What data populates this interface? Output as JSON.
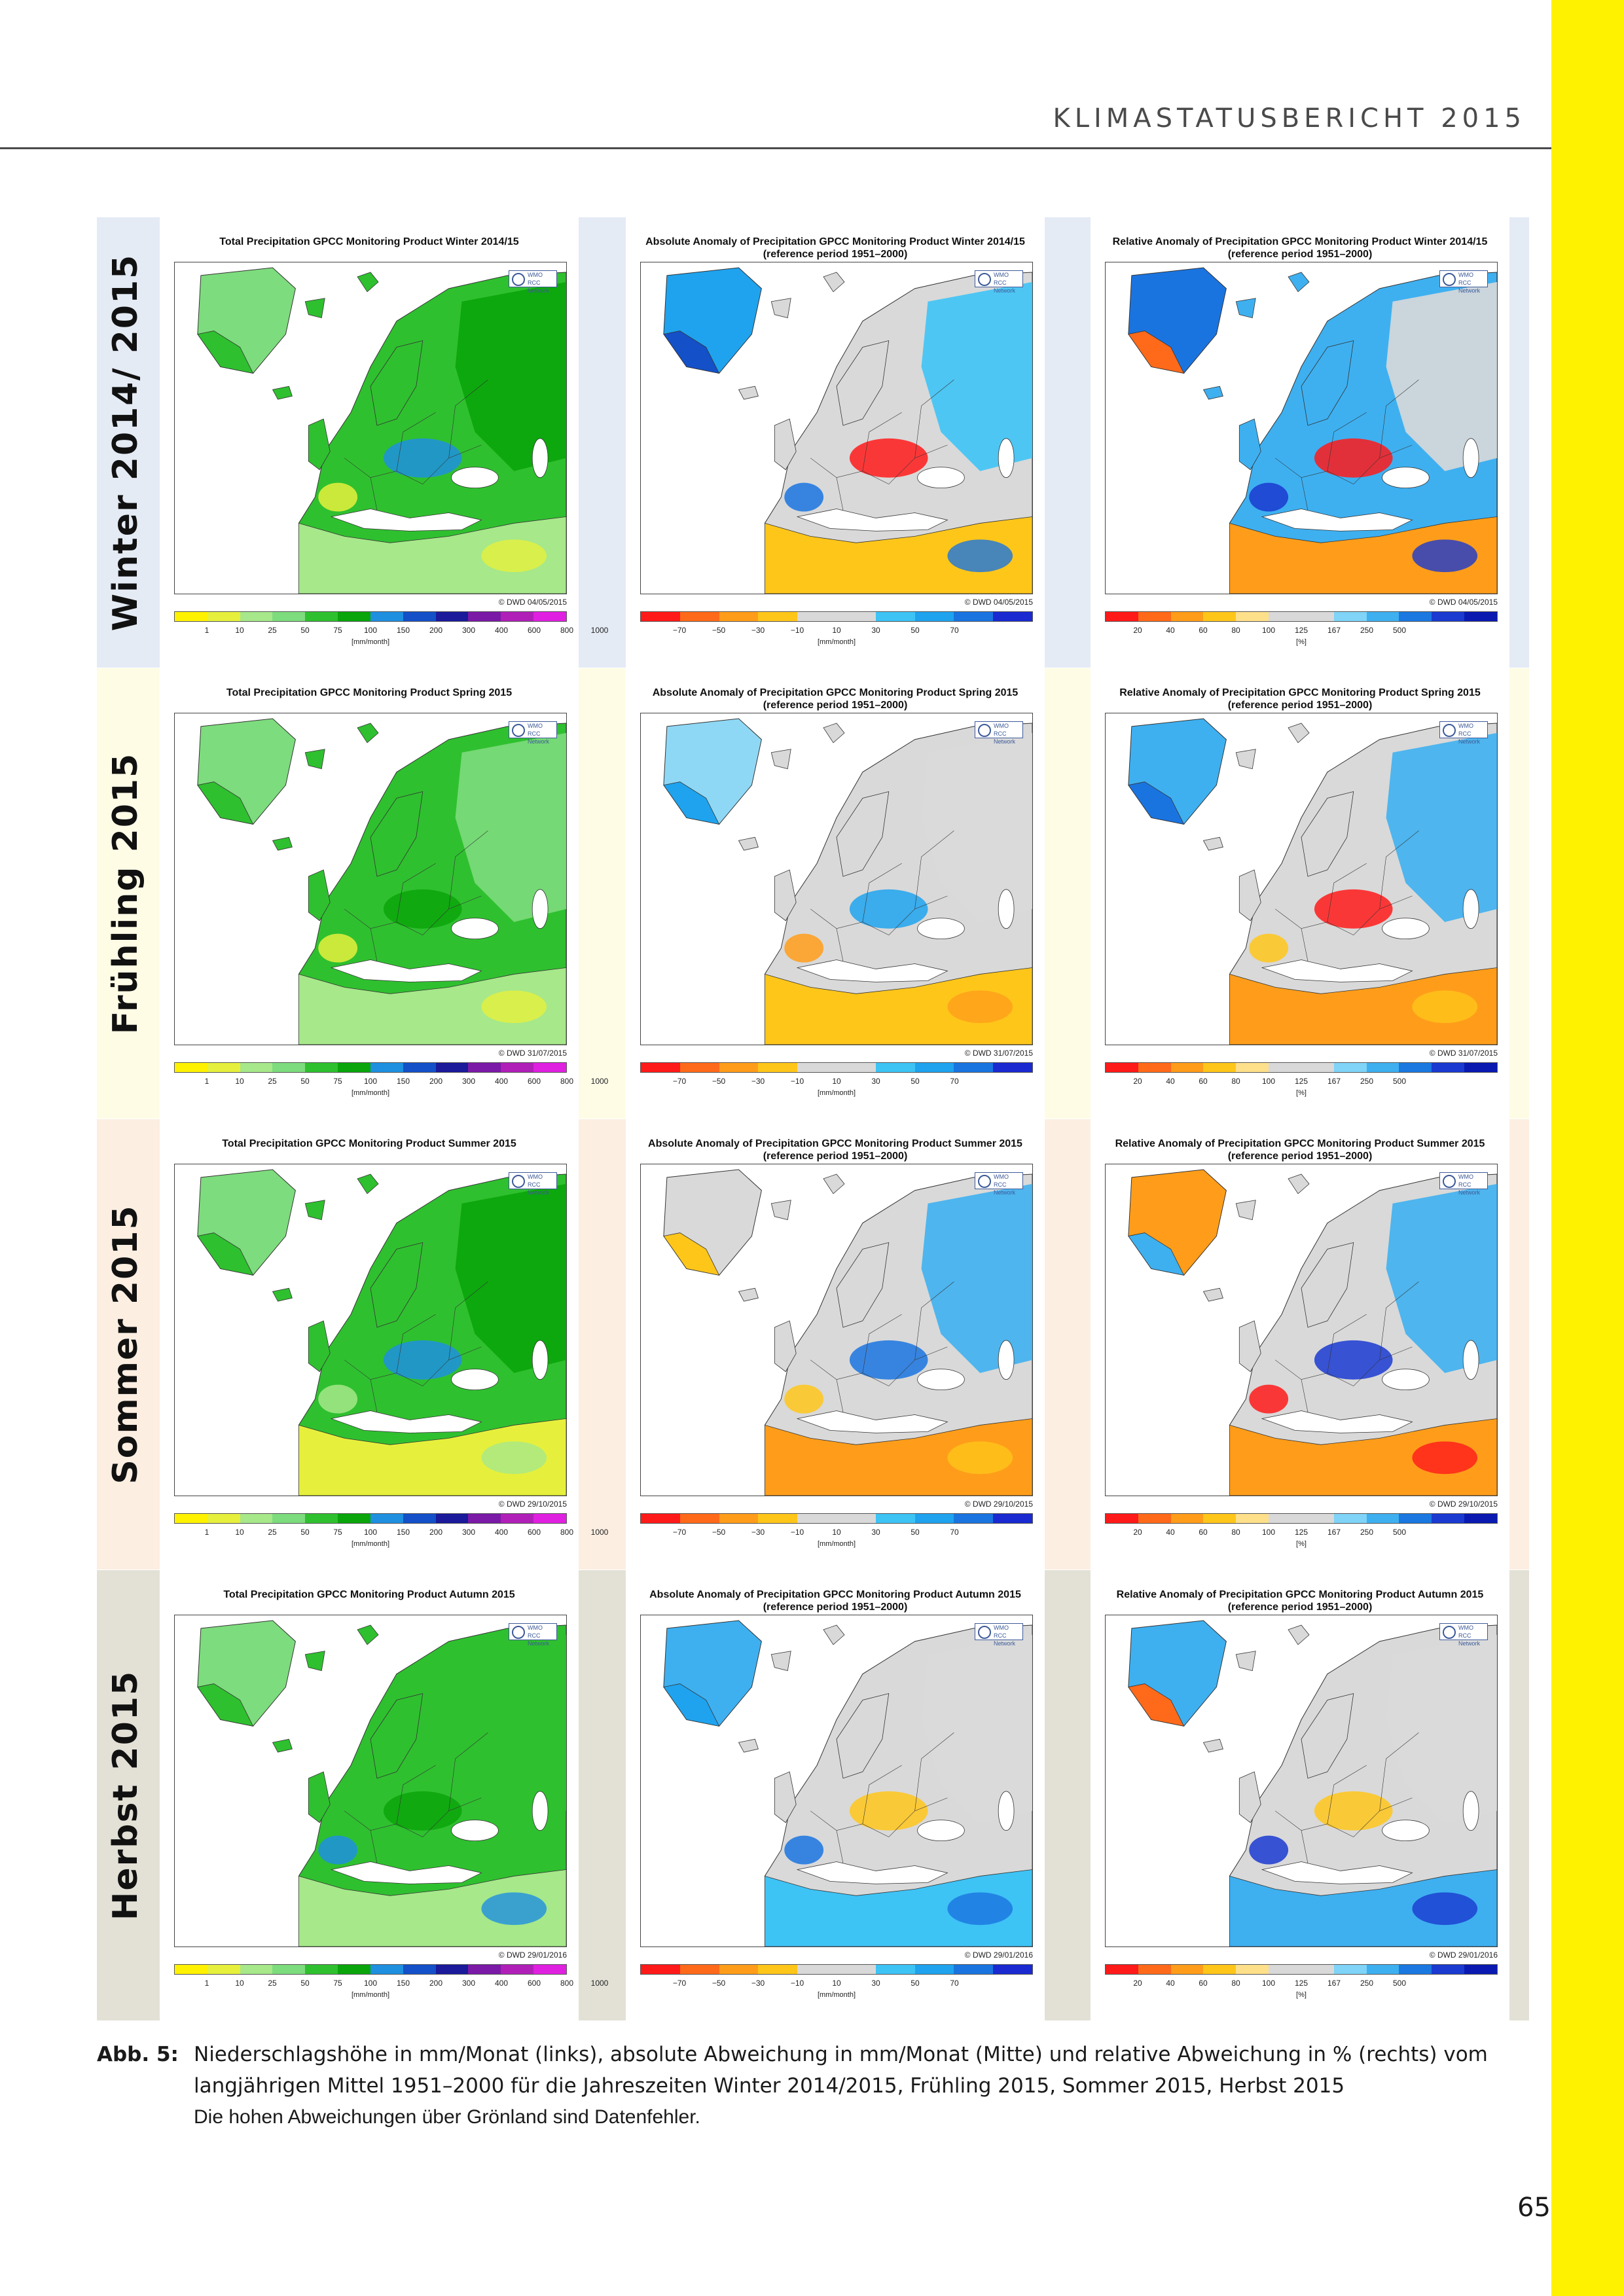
{
  "header": {
    "running_title": "KLIMASTATUSBERICHT 2015"
  },
  "seasons": [
    {
      "label": "Winter 2014/ 2015",
      "band_color": "#e4ebf5",
      "gap_color": "#e4ebf5"
    },
    {
      "label": "Frühling 2015",
      "band_color": "#fffce6",
      "gap_color": "#fffce6"
    },
    {
      "label": "Sommer 2015",
      "band_color": "#fdeee2",
      "gap_color": "#fdeee2"
    },
    {
      "label": "Herbst 2015",
      "band_color": "#e3e1d6",
      "gap_color": "#e3e1d6"
    }
  ],
  "panels": [
    [
      {
        "title": "Total Precipitation GPCC Monitoring Product Winter 2014/15",
        "subtitle": "",
        "credit": "© DWD 04/05/2015",
        "scale": "total",
        "scheme": "w-total"
      },
      {
        "title": "Absolute Anomaly of Precipitation GPCC Monitoring Product Winter 2014/15",
        "subtitle": "(reference period 1951–2000)",
        "credit": "© DWD 04/05/2015",
        "scale": "absolute",
        "scheme": "w-abs"
      },
      {
        "title": "Relative Anomaly of Precipitation GPCC Monitoring Product Winter 2014/15",
        "subtitle": "(reference period 1951–2000)",
        "credit": "© DWD 04/05/2015",
        "scale": "relative",
        "scheme": "w-rel"
      }
    ],
    [
      {
        "title": "Total Precipitation GPCC Monitoring Product Spring 2015",
        "subtitle": "",
        "credit": "© DWD 31/07/2015",
        "scale": "total",
        "scheme": "sp-total"
      },
      {
        "title": "Absolute Anomaly of Precipitation GPCC Monitoring Product Spring 2015",
        "subtitle": "(reference period 1951–2000)",
        "credit": "© DWD 31/07/2015",
        "scale": "absolute",
        "scheme": "sp-abs"
      },
      {
        "title": "Relative Anomaly of Precipitation GPCC Monitoring Product Spring 2015",
        "subtitle": "(reference period 1951–2000)",
        "credit": "© DWD 31/07/2015",
        "scale": "relative",
        "scheme": "sp-rel"
      }
    ],
    [
      {
        "title": "Total Precipitation GPCC Monitoring Product Summer 2015",
        "subtitle": "",
        "credit": "© DWD 29/10/2015",
        "scale": "total",
        "scheme": "su-total"
      },
      {
        "title": "Absolute Anomaly of Precipitation GPCC Monitoring Product Summer 2015",
        "subtitle": "(reference period 1951–2000)",
        "credit": "© DWD 29/10/2015",
        "scale": "absolute",
        "scheme": "su-abs"
      },
      {
        "title": "Relative Anomaly of Precipitation GPCC Monitoring Product Summer 2015",
        "subtitle": "(reference period 1951–2000)",
        "credit": "© DWD 29/10/2015",
        "scale": "relative",
        "scheme": "su-rel"
      }
    ],
    [
      {
        "title": "Total Precipitation GPCC Monitoring Product Autumn 2015",
        "subtitle": "",
        "credit": "© DWD 29/01/2016",
        "scale": "total",
        "scheme": "au-total"
      },
      {
        "title": "Absolute Anomaly of Precipitation GPCC Monitoring Product Autumn 2015",
        "subtitle": "(reference period 1951–2000)",
        "credit": "© DWD 29/01/2016",
        "scale": "absolute",
        "scheme": "au-abs"
      },
      {
        "title": "Relative Anomaly of Precipitation GPCC Monitoring Product Autumn 2015",
        "subtitle": "(reference period 1951–2000)",
        "credit": "© DWD 29/01/2016",
        "scale": "relative",
        "scheme": "au-rel"
      }
    ]
  ],
  "scales": {
    "total": {
      "colors": [
        "#fff200",
        "#e6f03c",
        "#a6e88a",
        "#7ddc7d",
        "#2fc02f",
        "#0aa50a",
        "#1f8fe0",
        "#1450c8",
        "#1a1a9a",
        "#7a1aa6",
        "#b020b8",
        "#e020e0"
      ],
      "ticks": [
        "1",
        "10",
        "25",
        "50",
        "75",
        "100",
        "150",
        "200",
        "300",
        "400",
        "600",
        "800",
        "1000"
      ],
      "unit": "[mm/month]"
    },
    "absolute": {
      "colors": [
        "#ff1a1a",
        "#ff6a1a",
        "#ff9d1a",
        "#ffc61a",
        "#d9d9d9",
        "#d9d9d9",
        "#3ec3f5",
        "#1fa3ee",
        "#1a74e0",
        "#1a2ad0"
      ],
      "ticks": [
        "−70",
        "−50",
        "−30",
        "−10",
        "10",
        "30",
        "50",
        "70"
      ],
      "unit": "[mm/month]"
    },
    "relative": {
      "colors": [
        "#ff1a1a",
        "#ff6a1a",
        "#ff9d1a",
        "#ffc61a",
        "#ffe08a",
        "#d9d9d9",
        "#d9d9d9",
        "#7fd4f7",
        "#3eb0f0",
        "#1a78e0",
        "#1a3ad0",
        "#0a1ab0"
      ],
      "ticks": [
        "20",
        "40",
        "60",
        "80",
        "100",
        "125",
        "167",
        "250",
        "500"
      ],
      "unit": "[%]"
    }
  },
  "map_palettes": {
    "w-total": {
      "greenland": "#7ddc7d",
      "greenland_coast": "#2fc02f",
      "land": "#2fc02f",
      "east": "#0aa50a",
      "south": "#a6e88a",
      "patch1": "#1f8fe0",
      "patch2": "#e6f03c"
    },
    "w-abs": {
      "greenland": "#1fa3ee",
      "greenland_coast": "#1450c8",
      "land": "#d9d9d9",
      "east": "#3ec3f5",
      "south": "#ffc61a",
      "patch1": "#ff1a1a",
      "patch2": "#1a74e0"
    },
    "w-rel": {
      "greenland": "#1a74e0",
      "greenland_coast": "#ff6a1a",
      "land": "#3eb0f0",
      "east": "#d9d9d9",
      "south": "#ff9d1a",
      "patch1": "#ff1a1a",
      "patch2": "#1a3ad0"
    },
    "sp-total": {
      "greenland": "#7ddc7d",
      "greenland_coast": "#2fc02f",
      "land": "#2fc02f",
      "east": "#7ddc7d",
      "south": "#a6e88a",
      "patch1": "#0aa50a",
      "patch2": "#e6f03c"
    },
    "sp-abs": {
      "greenland": "#8fd8f5",
      "greenland_coast": "#1fa3ee",
      "land": "#d9d9d9",
      "east": "#d9d9d9",
      "south": "#ffc61a",
      "patch1": "#1fa3ee",
      "patch2": "#ff9d1a"
    },
    "sp-rel": {
      "greenland": "#3eb0f0",
      "greenland_coast": "#1a74e0",
      "land": "#d9d9d9",
      "east": "#3eb0f0",
      "south": "#ff9d1a",
      "patch1": "#ff1a1a",
      "patch2": "#ffc61a"
    },
    "su-total": {
      "greenland": "#7ddc7d",
      "greenland_coast": "#2fc02f",
      "land": "#2fc02f",
      "east": "#0aa50a",
      "south": "#e6f03c",
      "patch1": "#1f8fe0",
      "patch2": "#a6e88a"
    },
    "su-abs": {
      "greenland": "#d9d9d9",
      "greenland_coast": "#ffc61a",
      "land": "#d9d9d9",
      "east": "#3eb0f0",
      "south": "#ff9d1a",
      "patch1": "#1a74e0",
      "patch2": "#ffc61a"
    },
    "su-rel": {
      "greenland": "#ff9d1a",
      "greenland_coast": "#3eb0f0",
      "land": "#d9d9d9",
      "east": "#3eb0f0",
      "south": "#ff9d1a",
      "patch1": "#1a3ad0",
      "patch2": "#ff1a1a"
    },
    "au-total": {
      "greenland": "#7ddc7d",
      "greenland_coast": "#2fc02f",
      "land": "#2fc02f",
      "east": "#2fc02f",
      "south": "#a6e88a",
      "patch1": "#0aa50a",
      "patch2": "#1f8fe0"
    },
    "au-abs": {
      "greenland": "#3eb0f0",
      "greenland_coast": "#1fa3ee",
      "land": "#d9d9d9",
      "east": "#d9d9d9",
      "south": "#3ec3f5",
      "patch1": "#ffc61a",
      "patch2": "#1a74e0"
    },
    "au-rel": {
      "greenland": "#3eb0f0",
      "greenland_coast": "#ff6a1a",
      "land": "#d9d9d9",
      "east": "#d9d9d9",
      "south": "#3eb0f0",
      "patch1": "#ffc61a",
      "patch2": "#1a3ad0"
    }
  },
  "logo": {
    "text_line1": "WMO",
    "text_line2": "RCC Network"
  },
  "caption": {
    "label": "Abb. 5:",
    "text": "Niederschlagshöhe in mm/Monat (links), absolute Abweichung in mm/Monat (Mitte) und relative Abweichung in % (rechts) vom langjährigen Mittel 1951–2000 für die Jahreszeiten Winter 2014/2015, Frühling 2015, Sommer 2015, Herbst 2015",
    "note": "Die hohen Abweichungen über Grönland sind Datenfehler."
  },
  "page_number": "65"
}
